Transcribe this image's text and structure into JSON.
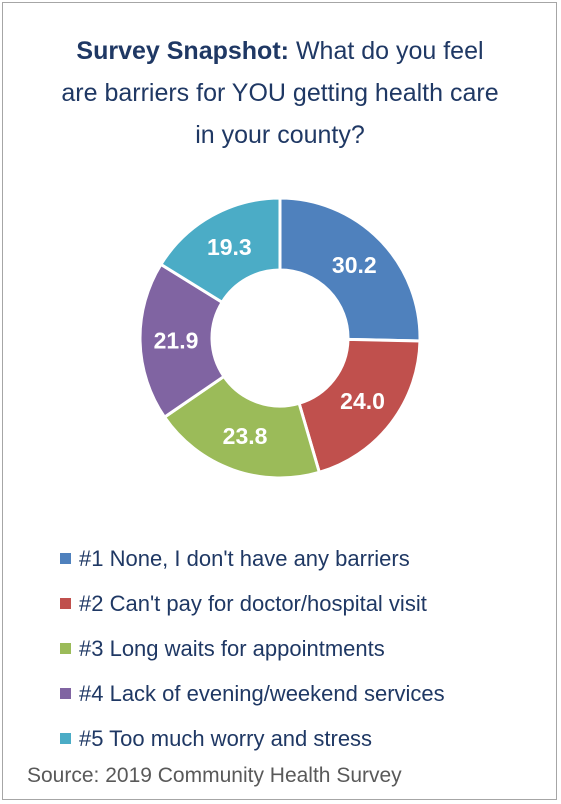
{
  "chart_data": {
    "type": "pie",
    "title_bold": "Survey Snapshot:",
    "title_rest": "What do you feel are barriers for YOU getting health care in your county?",
    "categories": [
      "#1 None, I don't have any barriers",
      "#2 Can't pay for doctor/hospital visit",
      "#3 Long waits for appointments",
      "#4 Lack of evening/weekend services",
      "#5 Too much worry and stress"
    ],
    "values": [
      30.2,
      24.0,
      23.8,
      21.9,
      19.3
    ],
    "value_labels": [
      "30.2",
      "24.0",
      "23.8",
      "21.9",
      "19.3"
    ],
    "colors": [
      "#4f81bd",
      "#c0504d",
      "#9bbb59",
      "#8064a2",
      "#4bacc6"
    ],
    "legend": "bottom"
  },
  "source": "Source: 2019 Community Health Survey"
}
